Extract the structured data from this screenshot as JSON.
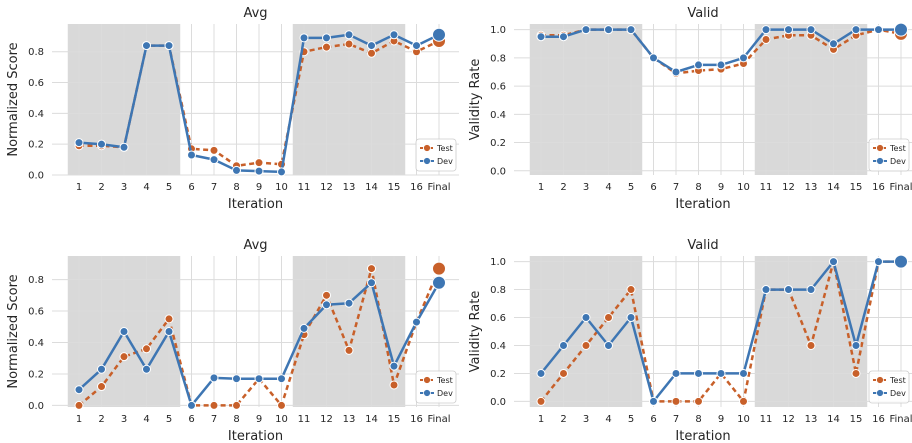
{
  "colors": {
    "test": "#c8602a",
    "dev": "#3e76b3",
    "shade": "#d9d9d9",
    "grid": "#dcdcdc"
  },
  "chart_data": [
    {
      "type": "line",
      "title": "Avg",
      "xlabel": "Iteration",
      "ylabel": "Normalized Score",
      "categories": [
        "1",
        "2",
        "3",
        "4",
        "5",
        "6",
        "7",
        "8",
        "9",
        "10",
        "11",
        "12",
        "13",
        "14",
        "15",
        "16",
        "Final"
      ],
      "yticks": [
        "0.0",
        "0.2",
        "0.4",
        "0.6",
        "0.8"
      ],
      "ylim": [
        0,
        0.98
      ],
      "shaded_iterations": [
        [
          1,
          5
        ],
        [
          11,
          15
        ]
      ],
      "grid": true,
      "legend": "bottom-right",
      "series": [
        {
          "name": "Test",
          "values": [
            0.19,
            0.19,
            0.18,
            0.84,
            0.84,
            0.17,
            0.16,
            0.06,
            0.08,
            0.07,
            0.8,
            0.83,
            0.85,
            0.79,
            0.87,
            0.8,
            0.87
          ]
        },
        {
          "name": "Dev",
          "values": [
            0.21,
            0.2,
            0.18,
            0.84,
            0.84,
            0.13,
            0.1,
            0.03,
            0.025,
            0.02,
            0.89,
            0.89,
            0.91,
            0.84,
            0.91,
            0.84,
            0.91
          ]
        }
      ]
    },
    {
      "type": "line",
      "title": "Valid",
      "xlabel": "Iteration",
      "ylabel": "Validity Rate",
      "categories": [
        "1",
        "2",
        "3",
        "4",
        "5",
        "6",
        "7",
        "8",
        "9",
        "10",
        "11",
        "12",
        "13",
        "14",
        "15",
        "16",
        "Final"
      ],
      "yticks": [
        "0.0",
        "0.2",
        "0.4",
        "0.6",
        "0.8",
        "1.0"
      ],
      "ylim": [
        -0.03,
        1.04
      ],
      "shaded_iterations": [
        [
          1,
          5
        ],
        [
          11,
          15
        ]
      ],
      "grid": true,
      "legend": "bottom-right",
      "series": [
        {
          "name": "Test",
          "values": [
            0.96,
            0.96,
            1.0,
            1.0,
            1.0,
            0.8,
            0.69,
            0.71,
            0.72,
            0.76,
            0.93,
            0.96,
            0.96,
            0.86,
            0.96,
            1.0,
            0.97
          ]
        },
        {
          "name": "Dev",
          "values": [
            0.95,
            0.95,
            1.0,
            1.0,
            1.0,
            0.8,
            0.7,
            0.75,
            0.75,
            0.8,
            1.0,
            1.0,
            1.0,
            0.9,
            1.0,
            1.0,
            1.0
          ]
        }
      ]
    },
    {
      "type": "line",
      "title": "Avg",
      "xlabel": "Iteration",
      "ylabel": "Normalized Score",
      "categories": [
        "1",
        "2",
        "3",
        "4",
        "5",
        "6",
        "7",
        "8",
        "9",
        "10",
        "11",
        "12",
        "13",
        "14",
        "15",
        "16",
        "Final"
      ],
      "yticks": [
        "0.0",
        "0.2",
        "0.4",
        "0.6",
        "0.8"
      ],
      "ylim": [
        -0.01,
        0.95
      ],
      "shaded_iterations": [
        [
          1,
          5
        ],
        [
          11,
          15
        ]
      ],
      "grid": true,
      "legend": "bottom-right",
      "series": [
        {
          "name": "Test",
          "values": [
            0.0,
            0.12,
            0.31,
            0.36,
            0.55,
            0.0,
            0.0,
            0.0,
            0.17,
            0.0,
            0.45,
            0.7,
            0.35,
            0.87,
            0.13,
            0.53,
            0.87
          ]
        },
        {
          "name": "Dev",
          "values": [
            0.1,
            0.23,
            0.47,
            0.23,
            0.47,
            0.0,
            0.175,
            0.17,
            0.17,
            0.17,
            0.49,
            0.64,
            0.65,
            0.78,
            0.25,
            0.53,
            0.78
          ]
        }
      ]
    },
    {
      "type": "line",
      "title": "Valid",
      "xlabel": "Iteration",
      "ylabel": "Validity Rate",
      "categories": [
        "1",
        "2",
        "3",
        "4",
        "5",
        "6",
        "7",
        "8",
        "9",
        "10",
        "11",
        "12",
        "13",
        "14",
        "15",
        "16",
        "Final"
      ],
      "yticks": [
        "0.0",
        "0.2",
        "0.4",
        "0.6",
        "0.8",
        "1.0"
      ],
      "ylim": [
        -0.04,
        1.04
      ],
      "shaded_iterations": [
        [
          1,
          5
        ],
        [
          11,
          15
        ]
      ],
      "grid": true,
      "legend": "bottom-right",
      "series": [
        {
          "name": "Test",
          "values": [
            0.0,
            0.2,
            0.4,
            0.6,
            0.8,
            0.0,
            0.0,
            0.0,
            0.2,
            0.0,
            0.8,
            0.8,
            0.4,
            1.0,
            0.2,
            1.0,
            1.0
          ]
        },
        {
          "name": "Dev",
          "values": [
            0.2,
            0.4,
            0.6,
            0.4,
            0.6,
            0.0,
            0.2,
            0.2,
            0.2,
            0.2,
            0.8,
            0.8,
            0.8,
            1.0,
            0.4,
            1.0,
            1.0
          ]
        }
      ]
    }
  ]
}
